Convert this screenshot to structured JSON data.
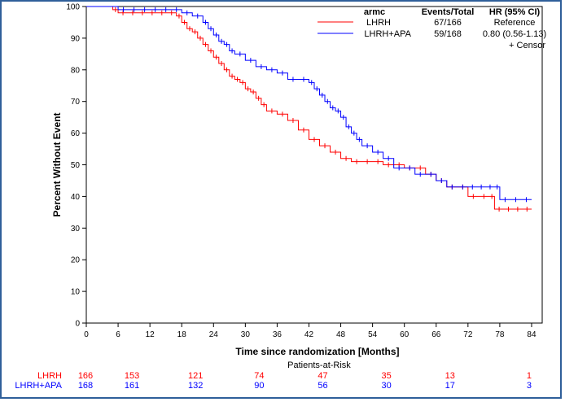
{
  "chart_data": {
    "type": "line",
    "xlabel": "Time since randomization [Months]",
    "ylabel": "Percent Without Event",
    "xlim": [
      0,
      86
    ],
    "ylim": [
      0,
      100
    ],
    "xticks": [
      0,
      6,
      12,
      18,
      24,
      30,
      36,
      42,
      48,
      54,
      60,
      66,
      72,
      78,
      84
    ],
    "yticks": [
      0,
      10,
      20,
      30,
      40,
      50,
      60,
      70,
      80,
      90,
      100
    ],
    "legend": {
      "header": {
        "group": "armc",
        "events": "Events/Total",
        "hr": "HR (95% CI)"
      },
      "censor_label": "+ Censor",
      "placement": "top-right"
    },
    "series": [
      {
        "name": "LHRH",
        "color": "#ff0000",
        "events_total": "67/166",
        "hr": "Reference",
        "x": [
          0,
          5,
          6,
          17,
          18,
          19,
          20,
          21,
          22,
          23,
          24,
          25,
          26,
          27,
          28,
          29,
          30,
          31,
          32,
          33,
          34,
          36,
          38,
          40,
          42,
          44,
          46,
          48,
          50,
          52,
          56,
          60,
          64,
          66,
          68,
          72,
          76,
          77,
          84
        ],
        "y": [
          100,
          99,
          98,
          97,
          95,
          93,
          92,
          90,
          88,
          86,
          84,
          82,
          80,
          78,
          77,
          76,
          74,
          73,
          71,
          69,
          67,
          66,
          64,
          61,
          58,
          56,
          54,
          52,
          51,
          51,
          50,
          49,
          47,
          45,
          43,
          40,
          40,
          36,
          36
        ]
      },
      {
        "name": "LHRH+APA",
        "color": "#0000ff",
        "events_total": "59/168",
        "hr": "0.80 (0.56-1.13)",
        "x": [
          0,
          6,
          18,
          20,
          22,
          23,
          24,
          25,
          26,
          27,
          28,
          30,
          32,
          34,
          36,
          38,
          40,
          42,
          43,
          44,
          45,
          46,
          47,
          48,
          49,
          50,
          51,
          52,
          54,
          56,
          58,
          62,
          66,
          68,
          72,
          77,
          78,
          84
        ],
        "y": [
          100,
          99,
          98,
          97,
          95,
          93,
          91,
          89,
          88,
          86,
          85,
          83,
          81,
          80,
          79,
          77,
          77,
          76,
          74,
          72,
          70,
          68,
          67,
          65,
          62,
          60,
          58,
          56,
          54,
          52,
          49,
          47,
          45,
          43,
          43,
          43,
          39,
          39
        ]
      }
    ],
    "risk_table": {
      "title": "Patients-at-Risk",
      "times": [
        6,
        18,
        30,
        42,
        54,
        66,
        84
      ],
      "rows": [
        {
          "name": "LHRH",
          "color": "#ff0000",
          "first": "166",
          "values": [
            "153",
            "121",
            "74",
            "47",
            "35",
            "13",
            "1"
          ]
        },
        {
          "name": "LHRH+APA",
          "color": "#0000ff",
          "first": "168",
          "values": [
            "161",
            "132",
            "90",
            "56",
            "30",
            "17",
            "3"
          ]
        }
      ]
    }
  }
}
